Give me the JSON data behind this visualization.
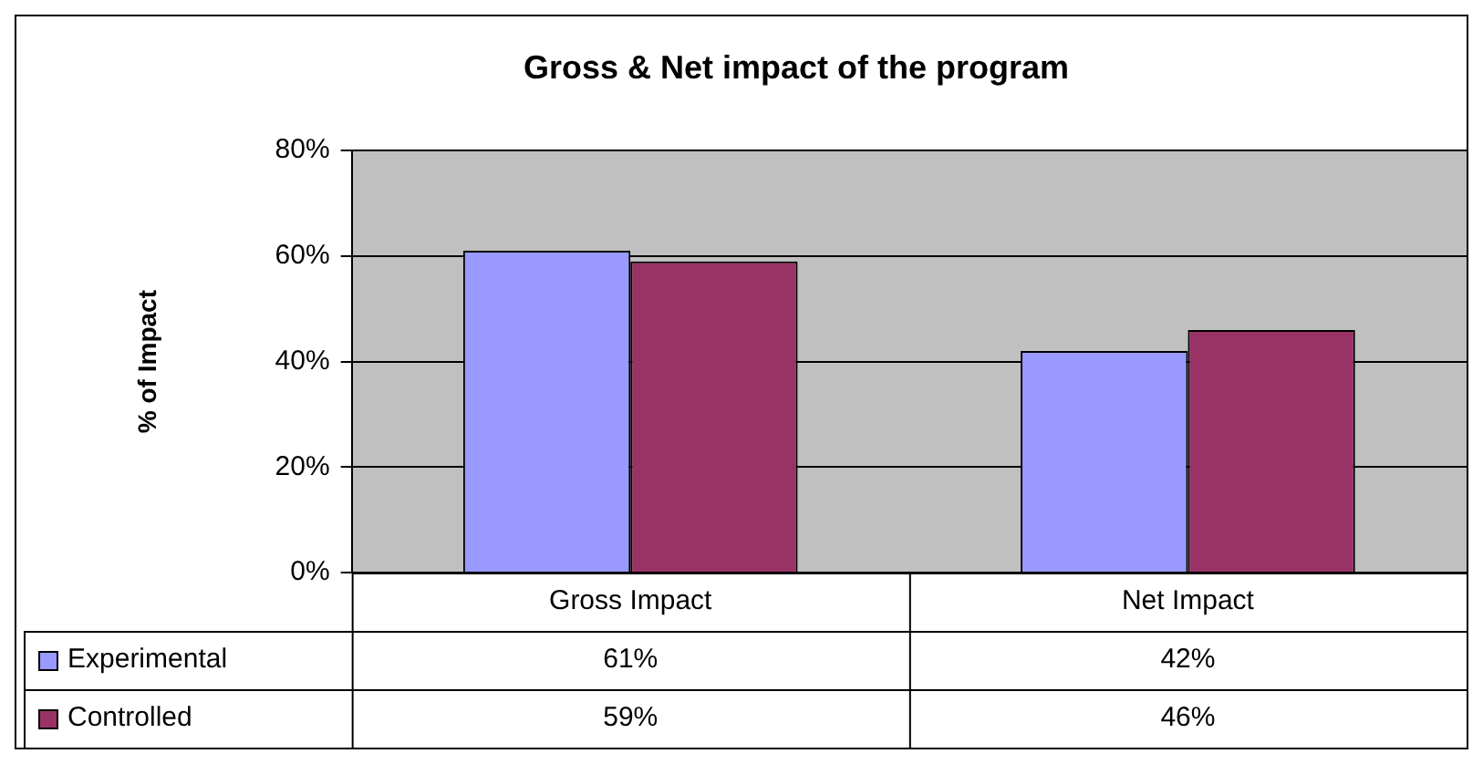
{
  "chart_data": {
    "type": "bar",
    "title": "Gross & Net impact of the program",
    "ylabel": "% of Impact",
    "categories": [
      "Gross Impact",
      "Net Impact"
    ],
    "series": [
      {
        "name": "Experimental",
        "color": "#9999ff",
        "values": [
          61,
          42
        ]
      },
      {
        "name": "Controlled",
        "color": "#993366",
        "values": [
          59,
          46
        ]
      }
    ],
    "ylim": [
      0,
      80
    ],
    "yticks": [
      {
        "value": 0,
        "label": "0%"
      },
      {
        "value": 20,
        "label": "20%"
      },
      {
        "value": 40,
        "label": "40%"
      },
      {
        "value": 60,
        "label": "60%"
      },
      {
        "value": 80,
        "label": "80%"
      }
    ],
    "grid": "y",
    "legend": "bottom left",
    "value_labels": [
      [
        "61%",
        "42%"
      ],
      [
        "59%",
        "46%"
      ]
    ]
  }
}
